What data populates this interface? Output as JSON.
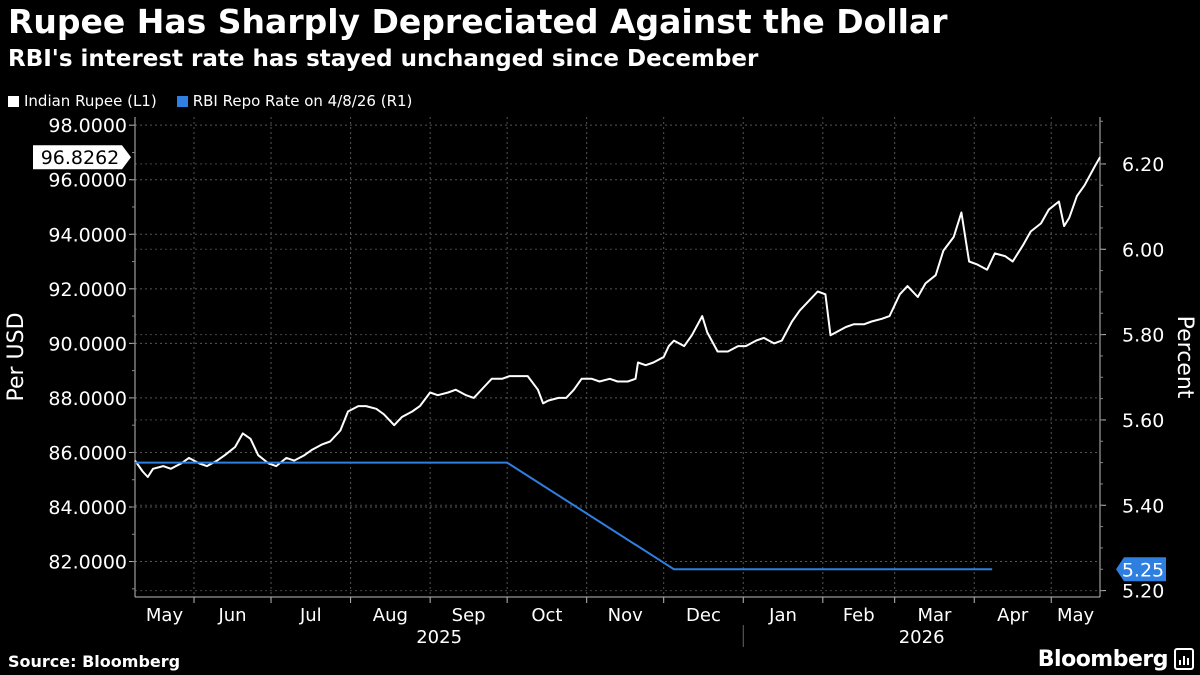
{
  "header": {
    "title": "Rupee Has Sharply Depreciated Against the Dollar",
    "subtitle": "RBI's interest rate has stayed unchanged since December"
  },
  "legend": {
    "items": [
      {
        "label": "Indian Rupee (L1)",
        "color": "#ffffff"
      },
      {
        "label": "RBI Repo Rate on 4/8/26 (R1)",
        "color": "#2f7fe0"
      }
    ]
  },
  "footer": {
    "source": "Source: Bloomberg",
    "brand": "Bloomberg"
  },
  "chart_data": {
    "type": "line",
    "x_range": [
      "2025-05-09",
      "2026-05-20"
    ],
    "left_axis": {
      "label": "Per USD",
      "ylim": [
        80.7,
        98.3
      ],
      "ticks": [
        "98.0000",
        "96.0000",
        "94.0000",
        "92.0000",
        "90.0000",
        "88.0000",
        "86.0000",
        "84.0000",
        "82.0000"
      ]
    },
    "right_axis": {
      "label": "Percent",
      "ylim": [
        5.185,
        6.31
      ],
      "ticks": [
        "6.20",
        "6.00",
        "5.80",
        "5.60",
        "5.40",
        "5.20"
      ]
    },
    "x_ticks": [
      "May",
      "Jun",
      "Jul",
      "Aug",
      "Sep",
      "Oct",
      "Nov",
      "Dec",
      "Jan",
      "Feb",
      "Mar",
      "Apr",
      "May"
    ],
    "years": [
      "2025",
      "2026"
    ],
    "grid": true,
    "last_value_labels": {
      "left": "96.8262",
      "right": "5.25"
    },
    "series": [
      {
        "name": "Indian Rupee",
        "axis": "left",
        "color": "#ffffff",
        "points": [
          [
            "2025-05-09",
            85.7
          ],
          [
            "2025-05-12",
            85.3
          ],
          [
            "2025-05-14",
            85.1
          ],
          [
            "2025-05-16",
            85.4
          ],
          [
            "2025-05-20",
            85.5
          ],
          [
            "2025-05-23",
            85.4
          ],
          [
            "2025-05-27",
            85.6
          ],
          [
            "2025-05-30",
            85.8
          ],
          [
            "2025-06-03",
            85.6
          ],
          [
            "2025-06-06",
            85.5
          ],
          [
            "2025-06-10",
            85.7
          ],
          [
            "2025-06-13",
            85.9
          ],
          [
            "2025-06-17",
            86.2
          ],
          [
            "2025-06-20",
            86.7
          ],
          [
            "2025-06-23",
            86.5
          ],
          [
            "2025-06-26",
            85.9
          ],
          [
            "2025-06-30",
            85.6
          ],
          [
            "2025-07-03",
            85.5
          ],
          [
            "2025-07-07",
            85.8
          ],
          [
            "2025-07-10",
            85.7
          ],
          [
            "2025-07-14",
            85.9
          ],
          [
            "2025-07-17",
            86.1
          ],
          [
            "2025-07-21",
            86.3
          ],
          [
            "2025-07-24",
            86.4
          ],
          [
            "2025-07-28",
            86.8
          ],
          [
            "2025-07-31",
            87.5
          ],
          [
            "2025-08-04",
            87.7
          ],
          [
            "2025-08-07",
            87.7
          ],
          [
            "2025-08-11",
            87.6
          ],
          [
            "2025-08-14",
            87.4
          ],
          [
            "2025-08-18",
            87.0
          ],
          [
            "2025-08-21",
            87.3
          ],
          [
            "2025-08-25",
            87.5
          ],
          [
            "2025-08-28",
            87.7
          ],
          [
            "2025-09-01",
            88.2
          ],
          [
            "2025-09-04",
            88.1
          ],
          [
            "2025-09-08",
            88.2
          ],
          [
            "2025-09-11",
            88.3
          ],
          [
            "2025-09-15",
            88.1
          ],
          [
            "2025-09-18",
            88.0
          ],
          [
            "2025-09-22",
            88.4
          ],
          [
            "2025-09-25",
            88.7
          ],
          [
            "2025-09-29",
            88.7
          ],
          [
            "2025-10-02",
            88.8
          ],
          [
            "2025-10-06",
            88.8
          ],
          [
            "2025-10-09",
            88.8
          ],
          [
            "2025-10-13",
            88.3
          ],
          [
            "2025-10-15",
            87.8
          ],
          [
            "2025-10-17",
            87.9
          ],
          [
            "2025-10-21",
            88.0
          ],
          [
            "2025-10-24",
            88.0
          ],
          [
            "2025-10-27",
            88.3
          ],
          [
            "2025-10-30",
            88.7
          ],
          [
            "2025-11-03",
            88.7
          ],
          [
            "2025-11-06",
            88.6
          ],
          [
            "2025-11-10",
            88.7
          ],
          [
            "2025-11-13",
            88.6
          ],
          [
            "2025-11-17",
            88.6
          ],
          [
            "2025-11-20",
            88.7
          ],
          [
            "2025-11-21",
            89.3
          ],
          [
            "2025-11-24",
            89.2
          ],
          [
            "2025-11-27",
            89.3
          ],
          [
            "2025-12-01",
            89.5
          ],
          [
            "2025-12-03",
            89.9
          ],
          [
            "2025-12-05",
            90.1
          ],
          [
            "2025-12-09",
            89.9
          ],
          [
            "2025-12-12",
            90.3
          ],
          [
            "2025-12-16",
            91.0
          ],
          [
            "2025-12-18",
            90.4
          ],
          [
            "2025-12-22",
            89.7
          ],
          [
            "2025-12-26",
            89.7
          ],
          [
            "2025-12-30",
            89.9
          ],
          [
            "2026-01-02",
            89.9
          ],
          [
            "2026-01-06",
            90.1
          ],
          [
            "2026-01-09",
            90.2
          ],
          [
            "2026-01-13",
            90.0
          ],
          [
            "2026-01-16",
            90.1
          ],
          [
            "2026-01-20",
            90.8
          ],
          [
            "2026-01-23",
            91.2
          ],
          [
            "2026-01-27",
            91.6
          ],
          [
            "2026-01-30",
            91.9
          ],
          [
            "2026-02-02",
            91.8
          ],
          [
            "2026-02-04",
            90.3
          ],
          [
            "2026-02-06",
            90.4
          ],
          [
            "2026-02-10",
            90.6
          ],
          [
            "2026-02-13",
            90.7
          ],
          [
            "2026-02-17",
            90.7
          ],
          [
            "2026-02-20",
            90.8
          ],
          [
            "2026-02-24",
            90.9
          ],
          [
            "2026-02-27",
            91.0
          ],
          [
            "2026-03-03",
            91.8
          ],
          [
            "2026-03-06",
            92.1
          ],
          [
            "2026-03-10",
            91.7
          ],
          [
            "2026-03-13",
            92.2
          ],
          [
            "2026-03-17",
            92.5
          ],
          [
            "2026-03-20",
            93.4
          ],
          [
            "2026-03-24",
            93.9
          ],
          [
            "2026-03-27",
            94.8
          ],
          [
            "2026-03-30",
            93.0
          ],
          [
            "2026-04-02",
            92.9
          ],
          [
            "2026-04-06",
            92.7
          ],
          [
            "2026-04-09",
            93.3
          ],
          [
            "2026-04-13",
            93.2
          ],
          [
            "2026-04-16",
            93.0
          ],
          [
            "2026-04-20",
            93.6
          ],
          [
            "2026-04-23",
            94.1
          ],
          [
            "2026-04-27",
            94.4
          ],
          [
            "2026-04-30",
            94.9
          ],
          [
            "2026-05-04",
            95.2
          ],
          [
            "2026-05-06",
            94.3
          ],
          [
            "2026-05-08",
            94.6
          ],
          [
            "2026-05-11",
            95.4
          ],
          [
            "2026-05-14",
            95.8
          ],
          [
            "2026-05-18",
            96.5
          ],
          [
            "2026-05-20",
            96.8262
          ]
        ]
      },
      {
        "name": "RBI Repo Rate",
        "axis": "right",
        "color": "#2f7fe0",
        "points": [
          [
            "2025-05-09",
            5.5
          ],
          [
            "2025-10-01",
            5.5
          ],
          [
            "2025-12-05",
            5.25
          ],
          [
            "2026-04-08",
            5.25
          ]
        ]
      }
    ]
  }
}
